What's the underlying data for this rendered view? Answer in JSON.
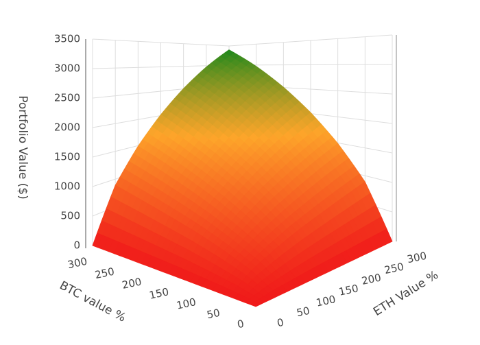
{
  "chart_data": {
    "type": "surface",
    "x_label": "BTC value %",
    "y_label": "ETH Value %",
    "z_label": "Portfolio Value ($)",
    "x": [
      0,
      50,
      100,
      150,
      200,
      250,
      300
    ],
    "y": [
      0,
      50,
      100,
      150,
      200,
      250,
      300
    ],
    "z": [
      [
        0,
        0,
        0,
        0,
        0,
        0,
        0
      ],
      [
        0,
        230,
        390,
        530,
        650,
        770,
        890
      ],
      [
        0,
        390,
        650,
        890,
        1100,
        1300,
        1490
      ],
      [
        0,
        530,
        890,
        1200,
        1490,
        1760,
        2020
      ],
      [
        0,
        650,
        1100,
        1490,
        1850,
        2190,
        2510
      ],
      [
        0,
        770,
        1300,
        1760,
        2190,
        2590,
        2970
      ],
      [
        0,
        890,
        1490,
        2020,
        2510,
        2970,
        3400
      ]
    ],
    "colors": [
      "#f01a1a",
      "#fda52a",
      "#1c881c"
    ],
    "xlim": [
      0,
      300
    ],
    "ylim": [
      0,
      300
    ],
    "zlim": [
      0,
      3500
    ],
    "xticks": [
      0,
      50,
      100,
      150,
      200,
      250,
      300
    ],
    "yticks": [
      0,
      50,
      100,
      150,
      200,
      250,
      300
    ],
    "zticks": [
      0,
      500,
      1000,
      1500,
      2000,
      2500,
      3000,
      3500
    ],
    "grid": true
  }
}
